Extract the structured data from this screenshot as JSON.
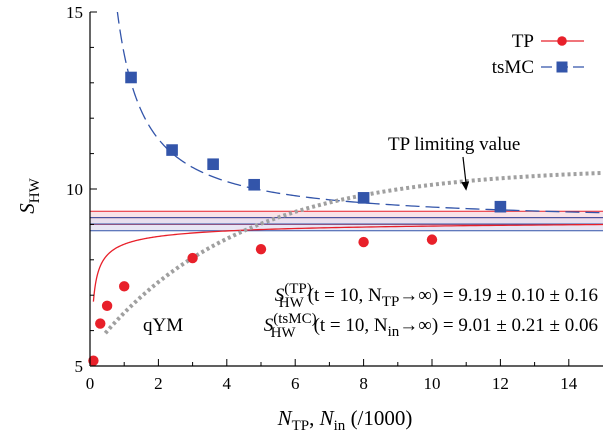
{
  "chart_data": {
    "type": "scatter",
    "xlim": [
      0,
      15
    ],
    "ylim": [
      5,
      15
    ],
    "x_ticks": [
      0,
      2,
      4,
      6,
      8,
      10,
      12,
      14
    ],
    "y_ticks": [
      5,
      10,
      15
    ],
    "grid": false,
    "legend_position": "top-right",
    "xlabel": {
      "sym1": "N",
      "sub1": "TP",
      "sep": ", ",
      "sym2": "N",
      "sub2": "in",
      "rest": " (/1000)"
    },
    "ylabel": {
      "sym": "S",
      "sub": "HW"
    },
    "series": [
      {
        "name": "TP",
        "color": "#e8202a",
        "marker": "circle",
        "points": [
          [
            0.1,
            5.15
          ],
          [
            0.3,
            6.2
          ],
          [
            0.5,
            6.7
          ],
          [
            1.0,
            7.25
          ],
          [
            3.0,
            8.05
          ],
          [
            5.0,
            8.3
          ],
          [
            8.0,
            8.5
          ],
          [
            10.0,
            8.57
          ]
        ]
      },
      {
        "name": "tsMC",
        "color": "#3355aa",
        "marker": "square",
        "points": [
          [
            1.2,
            13.15
          ],
          [
            2.4,
            11.1
          ],
          [
            3.6,
            10.7
          ],
          [
            4.8,
            10.12
          ],
          [
            8.0,
            9.75
          ],
          [
            12.0,
            9.5
          ]
        ]
      }
    ],
    "fits": [
      {
        "series": "TP",
        "style": "solid",
        "color": "#e8202a",
        "form": "a - b/x^c",
        "a": 9.19,
        "b": 0.75,
        "c": 0.5,
        "x_start": 0.1,
        "x_end": 15
      },
      {
        "series": "tsMC",
        "style": "dashed",
        "color": "#3355aa",
        "form": "a + b/x",
        "a": 9.01,
        "b": 4.8,
        "x_start": 0.62,
        "x_end": 15
      },
      {
        "series": "TP limiting value",
        "style": "dotted",
        "color": "#a0a0a0",
        "form": "a - b*exp(-x/c)",
        "a": 10.6,
        "b": 5.2,
        "c": 4.2,
        "x_start": 0.45,
        "x_end": 15
      }
    ],
    "bands": [
      {
        "series": "TP",
        "center": 9.19,
        "lower": 9.0,
        "upper": 9.37,
        "edge_color": "#e8202a",
        "fill": "#f7d9e0"
      },
      {
        "series": "tsMC",
        "center": 9.01,
        "lower": 8.82,
        "upper": 9.19,
        "edge_color": "#3355aa",
        "fill": "#e2def0"
      }
    ],
    "annotations": {
      "tp_limit_label": "TP limiting value",
      "tp_limit_arrow_target": [
        11.0,
        9.95
      ],
      "model_label": "qYM",
      "result_tp": {
        "sym": "S",
        "sub": "HW",
        "sup": "(TP)",
        "args": "(t = 10, N",
        "arg_sub": "TP",
        "arrow": "→∞) = 9.19 ± 0.10 ± 0.16"
      },
      "result_tsmc": {
        "sym": "S",
        "sub": "HW",
        "sup": "(tsMC)",
        "args": "(t = 10, N",
        "arg_sub": "in",
        "arrow": "→∞) = 9.01 ± 0.21 ± 0.06"
      }
    }
  }
}
